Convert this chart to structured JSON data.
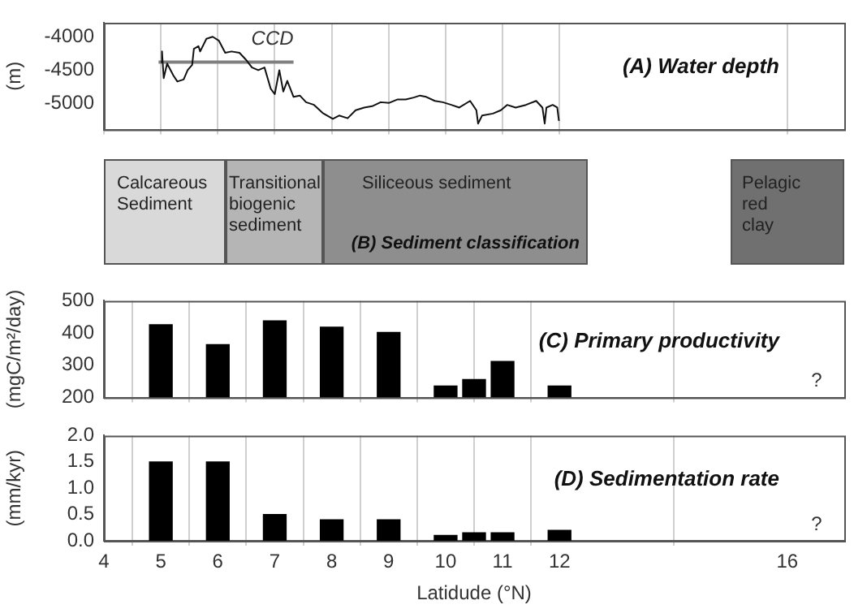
{
  "chart_data": [
    {
      "type": "line",
      "title": "(A) Water depth",
      "ylabel": "(m)",
      "xlim": [
        4,
        17
      ],
      "xticks": [
        4,
        5,
        6,
        7,
        8,
        9,
        10,
        11,
        12,
        16
      ],
      "ylim": [
        -5390,
        -3790
      ],
      "yticks": [
        -5000,
        -4500,
        -4000
      ],
      "tick_labels": "y",
      "grid": "x",
      "legend": false,
      "marker": "none",
      "series": [
        {
          "color": "#111111",
          "x": [
            5.0,
            5.02,
            5.05,
            5.11,
            5.22,
            5.29,
            5.4,
            5.47,
            5.55,
            5.58,
            5.66,
            5.69,
            5.8,
            5.91,
            6.02,
            6.13,
            6.24,
            6.38,
            6.49,
            6.6,
            6.71,
            6.82,
            6.93,
            7.0,
            7.08,
            7.15,
            7.22,
            7.33,
            7.44,
            7.55,
            7.69,
            7.84,
            8.02,
            8.13,
            8.28,
            8.42,
            8.57,
            8.71,
            8.86,
            9.01,
            9.15,
            9.3,
            9.44,
            9.55,
            9.66,
            9.81,
            9.95,
            10.1,
            10.24,
            10.43,
            10.54,
            10.57,
            10.64,
            10.83,
            10.97,
            11.08,
            11.23,
            11.41,
            11.59,
            11.7,
            11.74,
            11.77,
            11.88,
            11.96,
            11.99
          ],
          "values": [
            -4380,
            -4220,
            -4620,
            -4400,
            -4580,
            -4670,
            -4640,
            -4500,
            -4420,
            -4180,
            -4140,
            -4220,
            -4030,
            -4000,
            -4060,
            -4240,
            -4220,
            -4240,
            -4340,
            -4460,
            -4500,
            -4460,
            -4780,
            -4860,
            -4500,
            -4820,
            -4660,
            -4900,
            -4880,
            -4980,
            -5020,
            -5140,
            -5230,
            -5180,
            -5220,
            -5100,
            -5060,
            -5040,
            -4980,
            -4990,
            -4940,
            -4940,
            -4910,
            -4880,
            -4900,
            -4960,
            -4980,
            -5020,
            -5060,
            -4960,
            -5100,
            -5300,
            -5180,
            -5150,
            -5100,
            -5020,
            -5060,
            -5020,
            -4960,
            -5060,
            -5300,
            -5060,
            -5020,
            -5060,
            -5260
          ]
        },
        {
          "name": "CCD",
          "color": "#808080",
          "x": [
            4.96,
            7.33
          ],
          "values": [
            -4380,
            -4380
          ]
        }
      ]
    },
    {
      "type": "other",
      "title": "(B) Sediment classification",
      "annotations": [
        "Calcareous\nSediment",
        "Transitional\nbiogenic\nsediment",
        "Siliceous sediment",
        "Pelagic\nred\nclay"
      ]
    },
    {
      "type": "bar",
      "title": "(C) Primary productivity",
      "ylabel": "(mgC/m²/day)",
      "x": [
        5,
        6,
        7,
        8,
        9,
        10,
        10.5,
        11,
        12
      ],
      "values": [
        426,
        364,
        438,
        418,
        402,
        236,
        256,
        312,
        236
      ],
      "color": "#000000",
      "xlim": [
        4,
        17
      ],
      "xticks": [
        4,
        5,
        6,
        7,
        8,
        9,
        10,
        11,
        12,
        16
      ],
      "ylim": [
        200,
        500
      ],
      "yticks": [
        200,
        300,
        400,
        500
      ],
      "tick_labels": "y",
      "grid": "x",
      "legend": false,
      "annotations": [
        "?"
      ]
    },
    {
      "type": "bar",
      "title": "(D) Sedimentation rate",
      "ylabel": "(mm/kyr)",
      "xlabel": "Latidude (°N)",
      "x": [
        5,
        6,
        7,
        8,
        9,
        10,
        10.5,
        11,
        12
      ],
      "values": [
        1.5,
        1.5,
        0.5,
        0.4,
        0.4,
        0.1,
        0.15,
        0.15,
        0.2
      ],
      "color": "#000000",
      "xlim": [
        4,
        17
      ],
      "xticks": [
        4,
        5,
        6,
        7,
        8,
        9,
        10,
        11,
        12,
        16
      ],
      "ylim": [
        0,
        2
      ],
      "yticks": [
        {
          "value": 0,
          "label": "0.0"
        },
        {
          "value": 0.5,
          "label": "0.5"
        },
        {
          "value": 1,
          "label": "1.0"
        },
        {
          "value": 1.5,
          "label": "1.5"
        },
        {
          "value": 2,
          "label": "2.0"
        }
      ],
      "grid": "x",
      "legend": false,
      "annotations": [
        "?"
      ]
    }
  ]
}
